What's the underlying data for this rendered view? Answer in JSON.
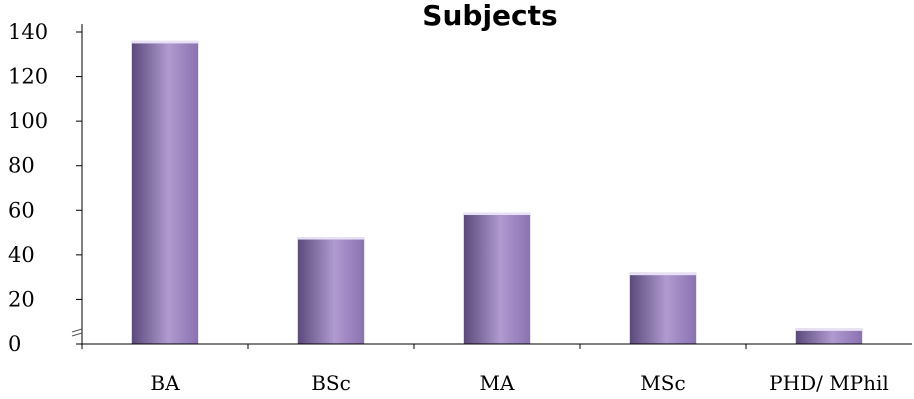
{
  "chart_data": {
    "type": "bar",
    "title": "Subjects",
    "categories": [
      "BA",
      "BSc",
      "MA",
      "MSc",
      "PHD/ MPhil"
    ],
    "values": [
      136,
      48,
      59,
      32,
      7
    ],
    "ylim": [
      0,
      140
    ],
    "yticks": [
      0,
      20,
      40,
      60,
      80,
      100,
      120,
      140
    ],
    "grid": false,
    "legend": "none",
    "colors": {
      "bar_dark": "#5a4a7a",
      "bar_light": "#b09ad0",
      "bar_mid": "#8a72b0",
      "axis": "#000000"
    }
  }
}
